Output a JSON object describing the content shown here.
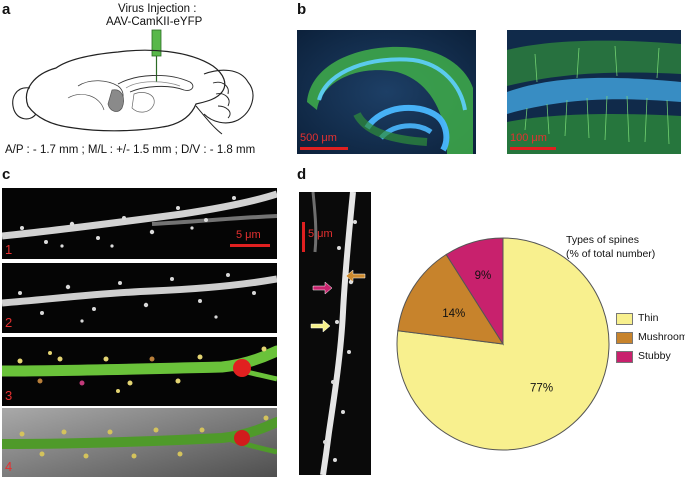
{
  "panels": {
    "a": {
      "label": "a",
      "injection_title": "Virus Injection :",
      "injection_virus": "AAV-CamKII-eYFP",
      "coordinates": "A/P : - 1.7 mm ; M/L : +/- 1.5 mm ; D/V : - 1.8 mm"
    },
    "b": {
      "label": "b",
      "scalebar_left": "500 μm",
      "scalebar_right": "100 μm"
    },
    "c": {
      "label": "c",
      "scalebar": "5 μm",
      "strip_numbers": [
        "1",
        "2",
        "3",
        "4"
      ]
    },
    "d": {
      "label": "d",
      "scalebar": "5 μm",
      "arrow_colors": {
        "thin": "#f6f08a",
        "mushroom": "#cc8a2e",
        "stubby": "#c8246e"
      }
    }
  },
  "chart_data": {
    "type": "pie",
    "title": "Types of spines",
    "subtitle": "(% of total number)",
    "slices": [
      {
        "name": "Thin",
        "value": 77,
        "label": "77%",
        "color": "#f8f08e"
      },
      {
        "name": "Mushroom",
        "value": 14,
        "label": "14%",
        "color": "#c7832c"
      },
      {
        "name": "Stubby",
        "value": 9,
        "label": "9%",
        "color": "#c8216d"
      }
    ],
    "legend_position": "right"
  }
}
